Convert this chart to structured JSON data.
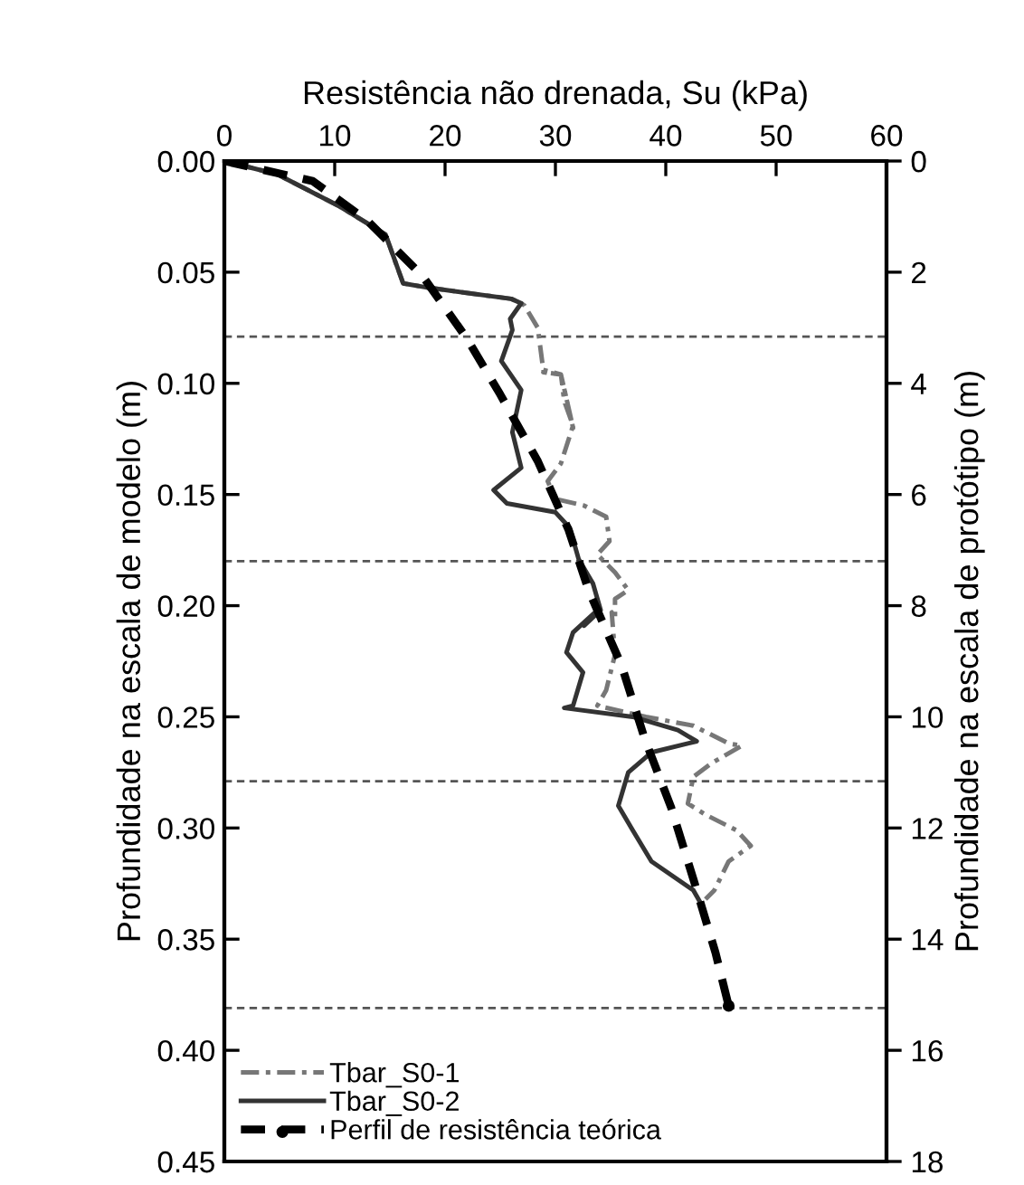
{
  "chart_data": {
    "type": "line",
    "xlabel": "Resistência não drenada, Su (kPa)",
    "ylabel": "Profundidade na escala de modelo (m)",
    "y2label": "Profundidade na escala de protótipo (m)",
    "xlim": [
      0,
      60
    ],
    "xticks": [
      0,
      10,
      20,
      30,
      40,
      50,
      60
    ],
    "ylim": [
      0.45,
      0
    ],
    "yticks": [
      {
        "value": 0,
        "label": "0.00"
      },
      {
        "value": 0.05,
        "label": "0.05"
      },
      {
        "value": 0.1,
        "label": "0.10"
      },
      {
        "value": 0.15,
        "label": "0.15"
      },
      {
        "value": 0.2,
        "label": "0.20"
      },
      {
        "value": 0.25,
        "label": "0.25"
      },
      {
        "value": 0.3,
        "label": "0.30"
      },
      {
        "value": 0.35,
        "label": "0.35"
      },
      {
        "value": 0.4,
        "label": "0.40"
      },
      {
        "value": 0.45,
        "label": "0.45"
      }
    ],
    "y2lim": [
      18,
      0
    ],
    "y2ticks": [
      0,
      2,
      4,
      6,
      8,
      10,
      12,
      14,
      16,
      18
    ],
    "grid": false,
    "legend": "bottom left",
    "ref_lines": [
      {
        "axis": "y",
        "value": 0.079,
        "color": "#555555",
        "line_style": "dashed"
      },
      {
        "axis": "y",
        "value": 0.18,
        "color": "#555555",
        "line_style": "dashed"
      },
      {
        "axis": "y",
        "value": 0.279,
        "color": "#555555",
        "line_style": "dashed"
      },
      {
        "axis": "y",
        "value": 0.381,
        "color": "#555555",
        "line_style": "dashed"
      }
    ],
    "series": [
      {
        "name": "Tbar_S0-1",
        "color": "#777777",
        "line_style": "dashdot",
        "marker": "none",
        "x": [
          0,
          4.8,
          10.3,
          14.6,
          16.2,
          18.5,
          26,
          26.9,
          27.2,
          28.4,
          28.9,
          30.5,
          31.6,
          30.5,
          28.9,
          30.5,
          30.8,
          31.6,
          30.5,
          29.3,
          30,
          32.6,
          34.6,
          34.9,
          33.8,
          35.4,
          36.6,
          35.4,
          35.4,
          35.1,
          35.4,
          34.6,
          33.8,
          38.2,
          42.5,
          45.7,
          46.9,
          44.1,
          42.5,
          42,
          43.6,
          46.4,
          47.7,
          45.7,
          44.4,
          43.6
        ],
        "values": [
          0,
          0.006,
          0.02,
          0.033,
          0.055,
          0.057,
          0.062,
          0.064,
          0.065,
          0.075,
          0.094,
          0.096,
          0.12,
          0.096,
          0.095,
          0.096,
          0.108,
          0.119,
          0.136,
          0.144,
          0.152,
          0.155,
          0.16,
          0.171,
          0.177,
          0.185,
          0.193,
          0.197,
          0.206,
          0.203,
          0.222,
          0.238,
          0.245,
          0.25,
          0.254,
          0.262,
          0.263,
          0.271,
          0.277,
          0.289,
          0.294,
          0.301,
          0.308,
          0.315,
          0.328,
          0.332
        ]
      },
      {
        "name": "Tbar_S0-2",
        "color": "#333333",
        "line_style": "solid",
        "marker": "none",
        "x": [
          0,
          4.8,
          10.3,
          14.6,
          16.2,
          18.5,
          26,
          26.9,
          25.9,
          26.1,
          25.1,
          26.9,
          26.1,
          26.9,
          24.4,
          25.6,
          30,
          31.3,
          32.1,
          33.4,
          34.1,
          32.6,
          33.8,
          31.6,
          31,
          32.5,
          31.6,
          30.8,
          37,
          41.1,
          42.8,
          38.7,
          36.6,
          35.7,
          37,
          38.7,
          42.5,
          43.3
        ],
        "values": [
          0,
          0.006,
          0.02,
          0.033,
          0.055,
          0.057,
          0.062,
          0.064,
          0.071,
          0.076,
          0.09,
          0.103,
          0.122,
          0.138,
          0.148,
          0.154,
          0.158,
          0.165,
          0.179,
          0.19,
          0.202,
          0.209,
          0.202,
          0.212,
          0.221,
          0.23,
          0.245,
          0.246,
          0.25,
          0.256,
          0.261,
          0.266,
          0.275,
          0.29,
          0.301,
          0.315,
          0.328,
          0.335
        ]
      },
      {
        "name": "Perfil de resistência teórica",
        "color": "#000000",
        "line_style": "dashed",
        "marker": "none",
        "x": [
          0,
          8,
          13,
          18,
          22,
          25,
          28.4,
          31.2,
          33,
          36,
          38.1,
          40.5,
          42.5,
          44.5,
          45.7
        ],
        "values": [
          0,
          0.009,
          0.027,
          0.052,
          0.08,
          0.105,
          0.135,
          0.166,
          0.193,
          0.227,
          0.26,
          0.291,
          0.323,
          0.356,
          0.38
        ]
      },
      {
        "type": "scatter",
        "color": "#000000",
        "marker": "circle",
        "x": [
          45.7
        ],
        "values": [
          0.38
        ]
      }
    ]
  }
}
